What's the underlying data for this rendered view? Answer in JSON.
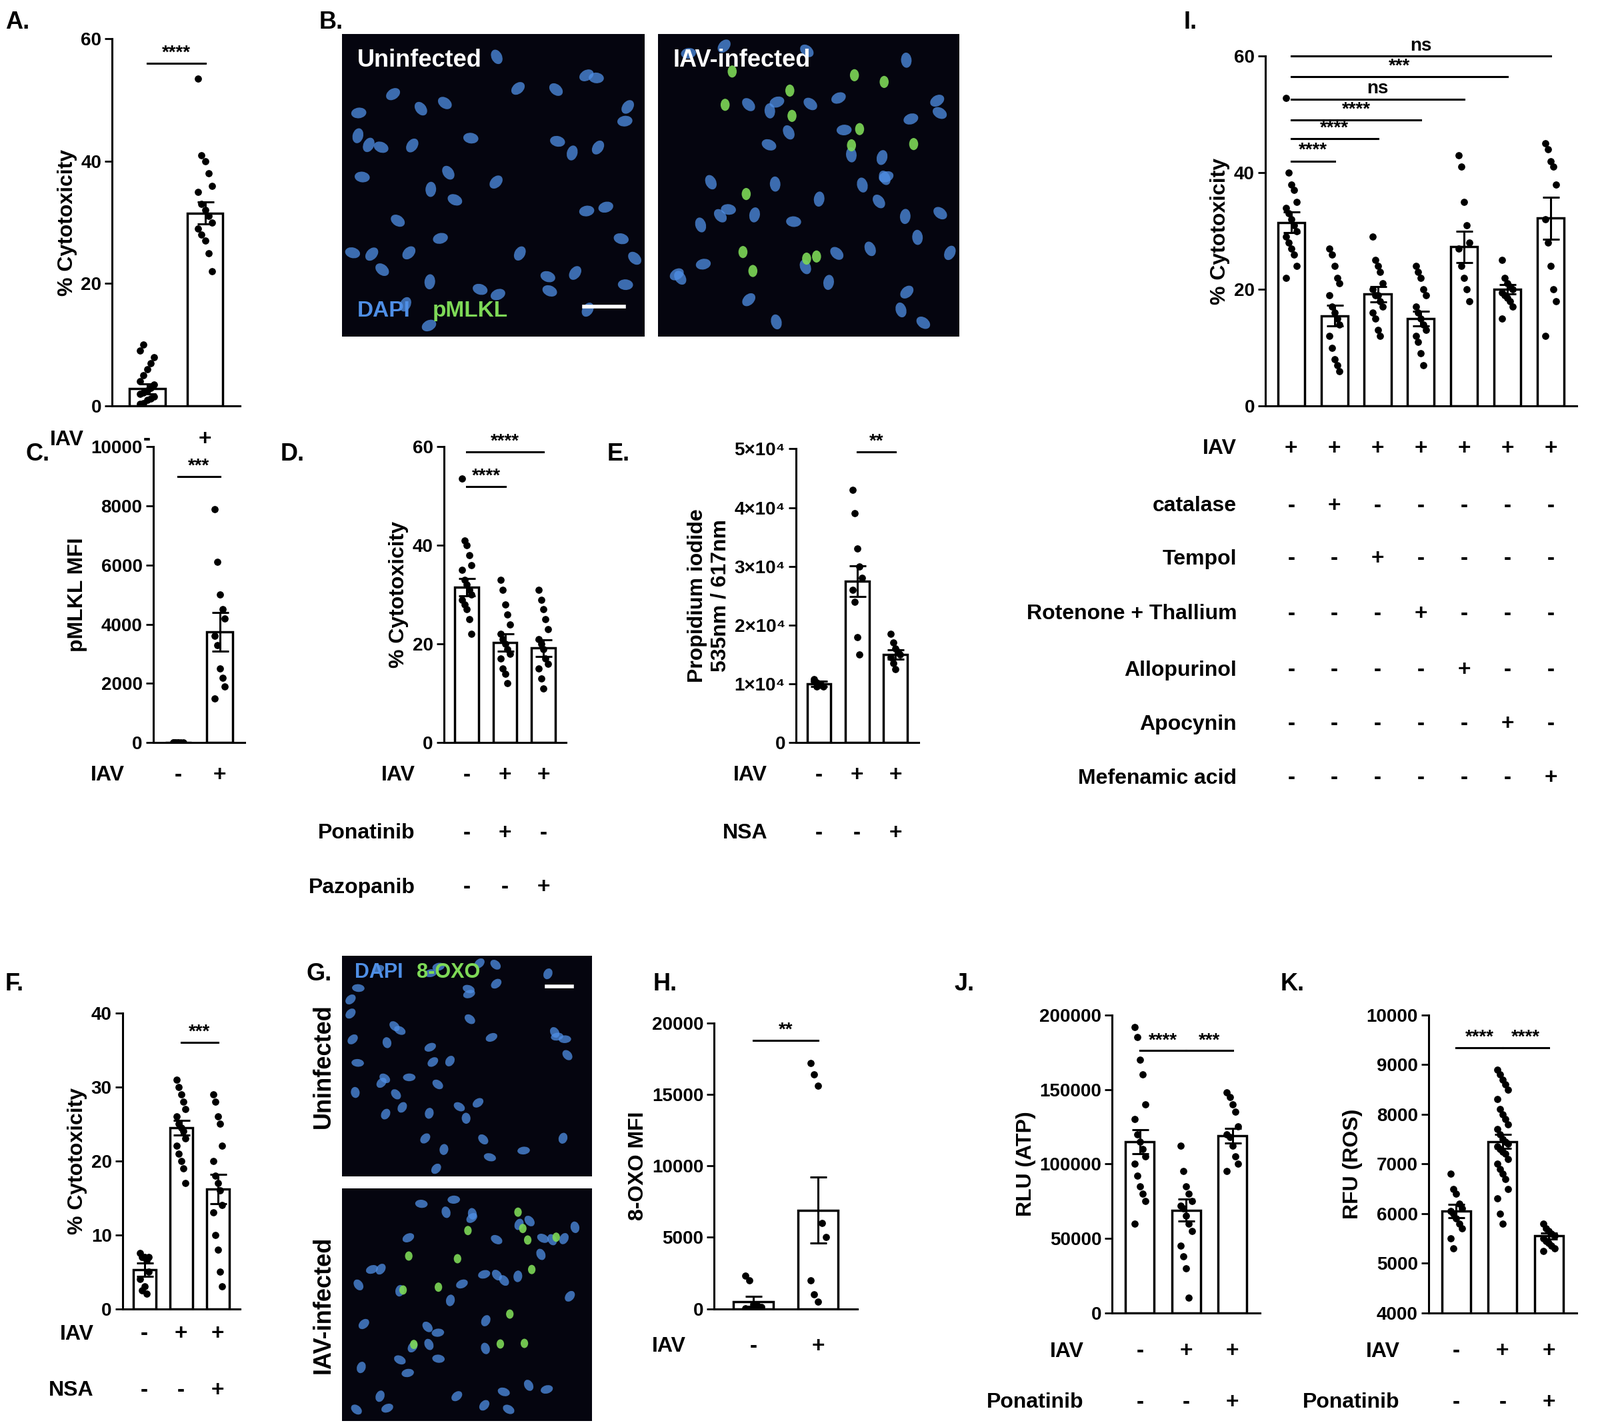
{
  "chart_data": [
    {
      "type": "bar",
      "panel": "A.",
      "ylabel": "% Cytotoxicity",
      "ylim": [
        0,
        60
      ],
      "yticks": [
        0,
        20,
        40,
        60
      ],
      "values": [
        2.8,
        31.5
      ],
      "errors": [
        0.8,
        1.8
      ],
      "points": [
        [
          0.3,
          0.5,
          1,
          1.2,
          1.5,
          2,
          2.2,
          2.5,
          3,
          3.5,
          4,
          5,
          6,
          7,
          8,
          9,
          10
        ],
        [
          53.5,
          41,
          40,
          38,
          36,
          35,
          33,
          32,
          31,
          30,
          29,
          28,
          27,
          25,
          22
        ]
      ],
      "conditions": [
        {
          "label": "IAV",
          "signs": [
            "-",
            "+"
          ]
        }
      ],
      "significance": [
        {
          "from": 0,
          "to": 1,
          "y": 56,
          "label": "****"
        }
      ]
    },
    {
      "type": "image",
      "panel": "B.",
      "images": [
        "Uninfected",
        "IAV-infected"
      ],
      "stains": [
        {
          "name": "DAPI",
          "color": "#4f8fe6"
        },
        {
          "name": "pMLKL",
          "color": "#7ed957"
        }
      ]
    },
    {
      "type": "bar",
      "panel": "C.",
      "ylabel": "pMLKL MFI",
      "ylim": [
        0,
        10000
      ],
      "yticks": [
        0,
        2000,
        4000,
        6000,
        8000,
        10000
      ],
      "values": [
        0,
        3750
      ],
      "errors": [
        0,
        650
      ],
      "points": [
        [
          0,
          0,
          0,
          0,
          0,
          0,
          0,
          0
        ],
        [
          7900,
          6100,
          5000,
          4500,
          4200,
          3600,
          3300,
          2500,
          2200,
          1900,
          1500
        ]
      ],
      "conditions": [
        {
          "label": "IAV",
          "signs": [
            "-",
            "+"
          ]
        }
      ],
      "significance": [
        {
          "from": 0,
          "to": 1,
          "y": 9000,
          "label": "***"
        }
      ]
    },
    {
      "type": "bar",
      "panel": "D.",
      "ylabel": "% Cytotoxicity",
      "ylim": [
        0,
        60
      ],
      "yticks": [
        0,
        20,
        40,
        60
      ],
      "values": [
        31.5,
        20.3,
        19.2
      ],
      "errors": [
        1.8,
        1.7,
        1.7
      ],
      "points": [
        [
          53.5,
          41,
          40,
          38,
          36,
          35,
          33,
          32,
          31,
          30,
          29,
          28,
          27,
          25,
          22
        ],
        [
          33,
          31,
          28,
          26,
          24,
          22,
          21,
          20,
          19,
          18,
          17,
          15,
          14,
          12
        ],
        [
          31,
          29,
          27,
          25,
          23,
          21,
          20,
          19,
          17,
          16,
          15,
          13,
          11
        ]
      ],
      "conditions": [
        {
          "label": "IAV",
          "signs": [
            "-",
            "+",
            "+"
          ]
        },
        {
          "label": "Ponatinib",
          "signs": [
            "-",
            "+",
            "-"
          ]
        },
        {
          "label": "Pazopanib",
          "signs": [
            "-",
            "-",
            "+"
          ]
        }
      ],
      "significance": [
        {
          "from": 0,
          "to": 1,
          "y": 52,
          "label": "****"
        },
        {
          "from": 0,
          "to": 2,
          "y": 59,
          "label": "****"
        }
      ]
    },
    {
      "type": "bar",
      "panel": "E.",
      "ylabel": "Propidium iodide\n535nm / 617nm",
      "ylim": [
        0,
        50000
      ],
      "yticks": [
        0,
        {
          "value": 10000,
          "label": "1×10⁴"
        },
        {
          "value": 20000,
          "label": "2×10⁴"
        },
        {
          "value": 30000,
          "label": "3×10⁴"
        },
        {
          "value": 40000,
          "label": "4×10⁴"
        },
        {
          "value": 50000,
          "label": "5×10⁴"
        }
      ],
      "values": [
        10000,
        27500,
        15000
      ],
      "errors": [
        400,
        2600,
        800
      ],
      "points": [
        [
          10500,
          10200,
          10000,
          9800,
          9600,
          10800,
          9500,
          9900
        ],
        [
          43000,
          39000,
          33000,
          30000,
          28000,
          26000,
          24000,
          18000,
          15000
        ],
        [
          18500,
          17000,
          16000,
          15500,
          15000,
          14500,
          13500,
          12500
        ]
      ],
      "conditions": [
        {
          "label": "IAV",
          "signs": [
            "-",
            "+",
            "+"
          ]
        },
        {
          "label": "NSA",
          "signs": [
            "-",
            "-",
            "+"
          ]
        }
      ],
      "significance": [
        {
          "from": 1,
          "to": 2,
          "y": 49500,
          "label": "**"
        }
      ]
    },
    {
      "type": "bar",
      "panel": "I.",
      "ylabel": "% Cytotoxicity",
      "ylim": [
        0,
        60
      ],
      "yticks": [
        0,
        20,
        40,
        60
      ],
      "values": [
        31.5,
        15.5,
        19.2,
        15,
        27.3,
        20,
        32.2
      ],
      "errors": [
        1.8,
        1.8,
        1.3,
        1.3,
        2.7,
        0.8,
        3.6
      ],
      "points": [
        [
          52.8,
          40,
          38,
          37,
          35,
          34,
          33,
          32,
          31,
          30,
          29,
          28,
          27,
          26,
          24,
          22
        ],
        [
          27,
          26,
          24,
          22,
          21,
          19,
          17,
          16,
          15,
          14,
          12,
          10,
          8,
          7,
          6
        ],
        [
          29,
          25,
          24,
          23,
          21,
          20,
          19,
          19,
          18,
          17,
          16,
          15,
          13,
          12
        ],
        [
          24,
          23,
          22,
          20,
          19,
          17,
          16,
          15,
          14,
          13,
          12,
          11,
          9,
          7
        ],
        [
          43,
          41,
          35,
          31,
          28,
          27,
          24,
          22,
          20,
          18
        ],
        [
          25,
          22,
          21,
          20.5,
          20,
          19.5,
          19,
          18.5,
          18,
          17,
          15
        ],
        [
          45,
          44,
          42,
          41,
          38,
          32,
          28,
          24,
          20,
          18,
          12
        ]
      ],
      "conditions": [
        {
          "label": "IAV",
          "signs": [
            "+",
            "+",
            "+",
            "+",
            "+",
            "+",
            "+"
          ]
        },
        {
          "label": "catalase",
          "signs": [
            "-",
            "+",
            "-",
            "-",
            "-",
            "-",
            "-"
          ]
        },
        {
          "label": "Tempol",
          "signs": [
            "-",
            "-",
            "+",
            "-",
            "-",
            "-",
            "-"
          ]
        },
        {
          "label": "Rotenone + Thallium",
          "signs": [
            "-",
            "-",
            "-",
            "+",
            "-",
            "-",
            "-"
          ]
        },
        {
          "label": "Allopurinol",
          "signs": [
            "-",
            "-",
            "-",
            "-",
            "+",
            "-",
            "-"
          ]
        },
        {
          "label": "Apocynin",
          "signs": [
            "-",
            "-",
            "-",
            "-",
            "-",
            "+",
            "-"
          ]
        },
        {
          "label": "Mefenamic acid",
          "signs": [
            "-",
            "-",
            "-",
            "-",
            "-",
            "-",
            "+"
          ]
        }
      ],
      "significance": [
        {
          "from": 0,
          "to": 1,
          "y": 42,
          "label": "****"
        },
        {
          "from": 0,
          "to": 2,
          "y": 45.8,
          "label": "****"
        },
        {
          "from": 0,
          "to": 3,
          "y": 49,
          "label": "****"
        },
        {
          "from": 0,
          "to": 4,
          "y": 52.6,
          "label": "ns"
        },
        {
          "from": 0,
          "to": 5,
          "y": 56.5,
          "label": "***"
        },
        {
          "from": 0,
          "to": 6,
          "y": 60,
          "label": "ns"
        }
      ]
    },
    {
      "type": "bar",
      "panel": "F.",
      "ylabel": "% Cytotoxicity",
      "ylim": [
        0,
        40
      ],
      "yticks": [
        0,
        10,
        20,
        30,
        40
      ],
      "values": [
        5.3,
        24.5,
        16.2
      ],
      "errors": [
        0.9,
        1.0,
        2.0
      ],
      "points": [
        [
          7.5,
          7,
          7,
          6.5,
          5,
          4,
          2.5,
          3,
          2,
          7
        ],
        [
          31,
          30,
          29,
          28,
          27,
          26,
          25,
          24.5,
          24,
          23,
          22,
          21,
          20,
          19,
          17
        ],
        [
          29,
          28,
          26,
          25,
          22,
          20,
          18,
          17,
          16,
          14,
          13,
          10,
          8,
          5,
          3
        ]
      ],
      "conditions": [
        {
          "label": "IAV",
          "signs": [
            "-",
            "+",
            "+"
          ]
        },
        {
          "label": "NSA",
          "signs": [
            "-",
            "-",
            "+"
          ]
        }
      ],
      "significance": [
        {
          "from": 1,
          "to": 2,
          "y": 36,
          "label": "***"
        }
      ]
    },
    {
      "type": "image",
      "panel": "G.",
      "images": [
        "Uninfected",
        "IAV-infected"
      ],
      "stains": [
        {
          "name": "DAPI",
          "color": "#4f8fe6"
        },
        {
          "name": "8-OXO",
          "color": "#7ed957"
        }
      ]
    },
    {
      "type": "bar",
      "panel": "H.",
      "ylabel": "8-OXO MFI",
      "ylim": [
        0,
        20000
      ],
      "yticks": [
        0,
        5000,
        10000,
        15000,
        20000
      ],
      "values": [
        500,
        6900
      ],
      "errors": [
        350,
        2300
      ],
      "points": [
        [
          2300,
          2000,
          300,
          200,
          100,
          50,
          0,
          0
        ],
        [
          17200,
          16400,
          15600,
          6000,
          5000,
          2000,
          1000,
          500
        ]
      ],
      "conditions": [
        {
          "label": "IAV",
          "signs": [
            "-",
            "+"
          ]
        }
      ],
      "significance": [
        {
          "from": 0,
          "to": 1,
          "y": 18800,
          "label": "**"
        }
      ]
    },
    {
      "type": "bar",
      "panel": "J.",
      "ylabel": "RLU (ATP)",
      "ylim": [
        0,
        200000
      ],
      "yticks": [
        0,
        50000,
        100000,
        150000,
        200000
      ],
      "values": [
        115000,
        69000,
        119000
      ],
      "errors": [
        8000,
        7500,
        5000
      ],
      "points": [
        [
          192000,
          185000,
          170000,
          160000,
          140000,
          130000,
          120000,
          115000,
          110000,
          105000,
          100000,
          92000,
          85000,
          80000,
          75000,
          60000
        ],
        [
          112000,
          95000,
          85000,
          80000,
          75000,
          72000,
          70000,
          65000,
          60000,
          55000,
          45000,
          38000,
          30000,
          10000
        ],
        [
          148000,
          145000,
          140000,
          135000,
          125000,
          120000,
          118000,
          112000,
          105000,
          100000,
          95000
        ]
      ],
      "conditions": [
        {
          "label": "IAV",
          "signs": [
            "-",
            "+",
            "+"
          ]
        },
        {
          "label": "Ponatinib",
          "signs": [
            "-",
            "-",
            "+"
          ]
        }
      ],
      "significance": [
        {
          "from": 0,
          "to": 1,
          "y": 176000,
          "label": "****"
        },
        {
          "from": 1,
          "to": 2,
          "y": 176000,
          "label": "***"
        }
      ]
    },
    {
      "type": "bar",
      "panel": "K.",
      "ylabel": "RFU (ROS)",
      "ylim": [
        4000,
        10000
      ],
      "yticks": [
        4000,
        5000,
        6000,
        7000,
        8000,
        9000,
        10000
      ],
      "values": [
        6050,
        7450,
        5550
      ],
      "errors": [
        130,
        140,
        60
      ],
      "points": [
        [
          6800,
          6500,
          6400,
          6200,
          6100,
          6050,
          6000,
          5900,
          5800,
          5700,
          5500,
          5300
        ],
        [
          8900,
          8800,
          8700,
          8600,
          8500,
          8300,
          8100,
          8000,
          7900,
          7800,
          7700,
          7600,
          7500,
          7450,
          7400,
          7350,
          7300,
          7250,
          7200,
          7100,
          7000,
          6900,
          6800,
          6700,
          6500,
          6300,
          6000,
          5800
        ],
        [
          5800,
          5700,
          5650,
          5600,
          5550,
          5500,
          5450,
          5400,
          5350,
          5300,
          5250
        ]
      ],
      "conditions": [
        {
          "label": "IAV",
          "signs": [
            "-",
            "+",
            "+"
          ]
        },
        {
          "label": "Ponatinib",
          "signs": [
            "-",
            "-",
            "+"
          ]
        }
      ],
      "significance": [
        {
          "from": 0,
          "to": 1,
          "y": 9340,
          "label": "****"
        },
        {
          "from": 1,
          "to": 2,
          "y": 9340,
          "label": "****"
        }
      ]
    }
  ]
}
